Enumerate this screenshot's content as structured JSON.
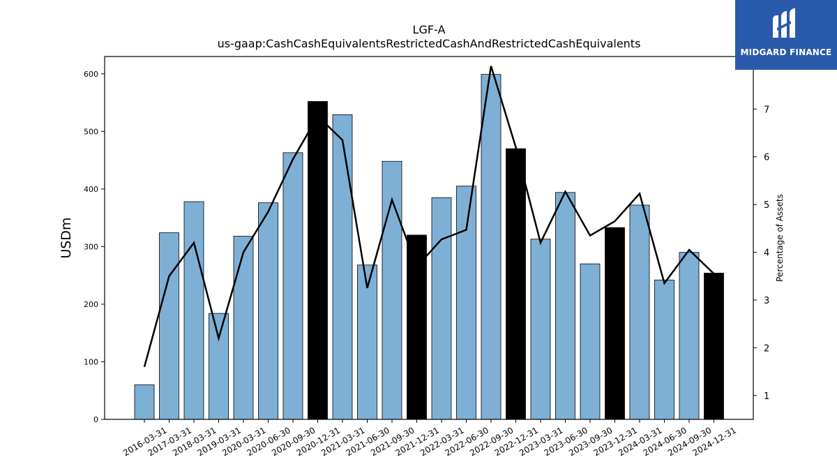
{
  "chart_data": {
    "type": "bar",
    "title": "LGF-A",
    "subtitle": "us-gaap:CashCashEquivalentsRestrictedCashAndRestrictedCashEquivalents",
    "ylabel": "USDm",
    "y2label": "Percentage of Assets",
    "categories": [
      "2016-03-31",
      "2017-03-31",
      "2018-03-31",
      "2019-03-31",
      "2020-03-31",
      "2020-06-30",
      "2020-09-30",
      "2020-12-31",
      "2021-03-31",
      "2021-06-30",
      "2021-09-30",
      "2021-12-31",
      "2022-03-31",
      "2022-06-30",
      "2022-09-30",
      "2022-12-31",
      "2023-03-31",
      "2023-06-30",
      "2023-09-30",
      "2023-12-31",
      "2024-03-31",
      "2024-06-30",
      "2024-09-30",
      "2024-12-31"
    ],
    "values": [
      60,
      324,
      378,
      184,
      318,
      376,
      463,
      552,
      529,
      268,
      448,
      320,
      385,
      405,
      599,
      470,
      313,
      394,
      270,
      333,
      372,
      242,
      290,
      254
    ],
    "highlight": [
      false,
      false,
      false,
      false,
      false,
      false,
      false,
      true,
      false,
      false,
      false,
      true,
      false,
      false,
      false,
      true,
      false,
      false,
      false,
      true,
      false,
      false,
      false,
      true
    ],
    "line_values": [
      1.6,
      3.5,
      4.2,
      2.2,
      4.0,
      4.85,
      5.95,
      6.85,
      6.35,
      3.25,
      5.1,
      3.7,
      4.27,
      4.47,
      7.9,
      6.2,
      4.2,
      5.27,
      4.35,
      4.65,
      5.23,
      3.35,
      4.05,
      3.55
    ],
    "ylim": [
      0,
      630
    ],
    "y2lim": [
      0.5,
      8.1
    ],
    "yticks": [
      0,
      100,
      200,
      300,
      400,
      500,
      600
    ],
    "y2ticks": [
      1,
      2,
      3,
      4,
      5,
      6,
      7
    ],
    "grid": false,
    "colors": {
      "bar": "#7eb0d5",
      "highlight_bar": "#000000",
      "line": "#000000"
    }
  },
  "logo": {
    "text": "MIDGARD FINANCE"
  }
}
